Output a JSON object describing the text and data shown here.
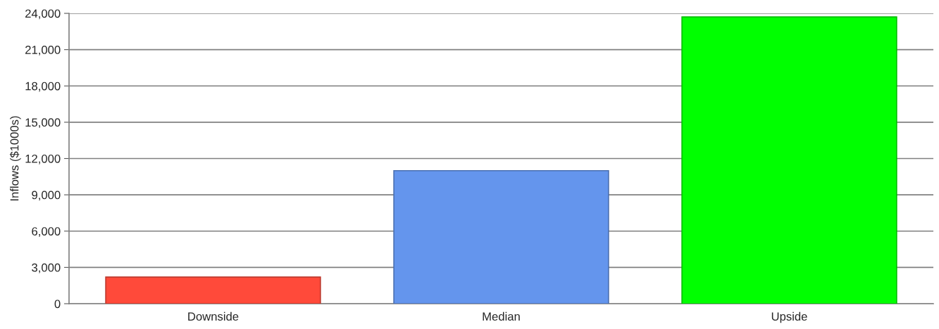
{
  "chart_data": {
    "type": "bar",
    "ylabel": "Inflows ($1000s)",
    "categories": [
      "Downside",
      "Median",
      "Upside"
    ],
    "values": [
      2200,
      11000,
      23700
    ],
    "colors": [
      "#ff4a3a",
      "#6495ed",
      "#00ff00"
    ],
    "ylim": [
      0,
      24000
    ],
    "yticks": [
      {
        "value": 0,
        "label": "0"
      },
      {
        "value": 3000,
        "label": "3,000"
      },
      {
        "value": 6000,
        "label": "6,000"
      },
      {
        "value": 9000,
        "label": "9,000"
      },
      {
        "value": 12000,
        "label": "12,000"
      },
      {
        "value": 15000,
        "label": "15,000"
      },
      {
        "value": 18000,
        "label": "18,000"
      },
      {
        "value": 21000,
        "label": "21,000"
      },
      {
        "value": 24000,
        "label": "24,000"
      }
    ],
    "grid": "y"
  }
}
